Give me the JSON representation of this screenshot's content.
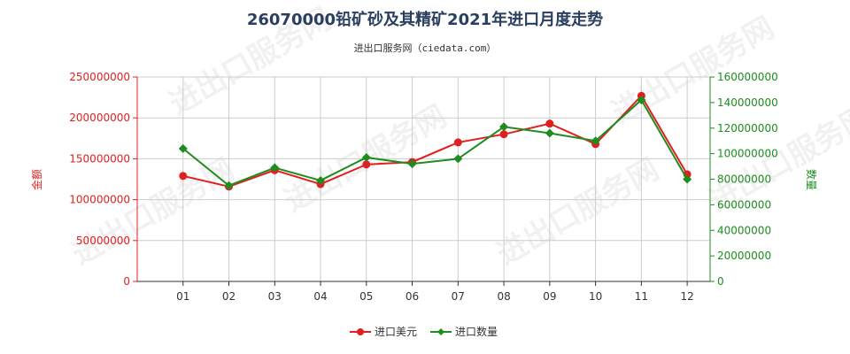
{
  "chart_data": {
    "type": "line",
    "title": "26070000铅矿砂及其精矿2021年进口月度走势",
    "subtitle": "进出口服务网（ciedata.com）",
    "categories": [
      "01",
      "02",
      "03",
      "04",
      "05",
      "06",
      "07",
      "08",
      "09",
      "10",
      "11",
      "12"
    ],
    "ylabel_left": "金额",
    "ylabel_right": "数量",
    "ylim_left": [
      0,
      250000000
    ],
    "ylim_right": [
      0,
      160000000
    ],
    "yticks_left": [
      "0",
      "50000000",
      "100000000",
      "150000000",
      "200000000",
      "250000000"
    ],
    "yticks_right": [
      "0",
      "20000000",
      "40000000",
      "60000000",
      "80000000",
      "100000000",
      "120000000",
      "140000000",
      "160000000"
    ],
    "grid": true,
    "legend_position": "bottom",
    "watermark": "进出口服务网",
    "series": [
      {
        "name": "进口美元",
        "axis": "left",
        "color": "#e02020",
        "values": [
          129000000,
          116000000,
          136000000,
          119000000,
          143000000,
          146000000,
          170000000,
          180000000,
          193000000,
          168000000,
          227000000,
          131000000
        ]
      },
      {
        "name": "进口数量",
        "axis": "right",
        "color": "#1e8c1e",
        "values": [
          104000000,
          75000000,
          89000000,
          79000000,
          97000000,
          92000000,
          96000000,
          121000000,
          116000000,
          110000000,
          142000000,
          80000000
        ]
      }
    ]
  }
}
